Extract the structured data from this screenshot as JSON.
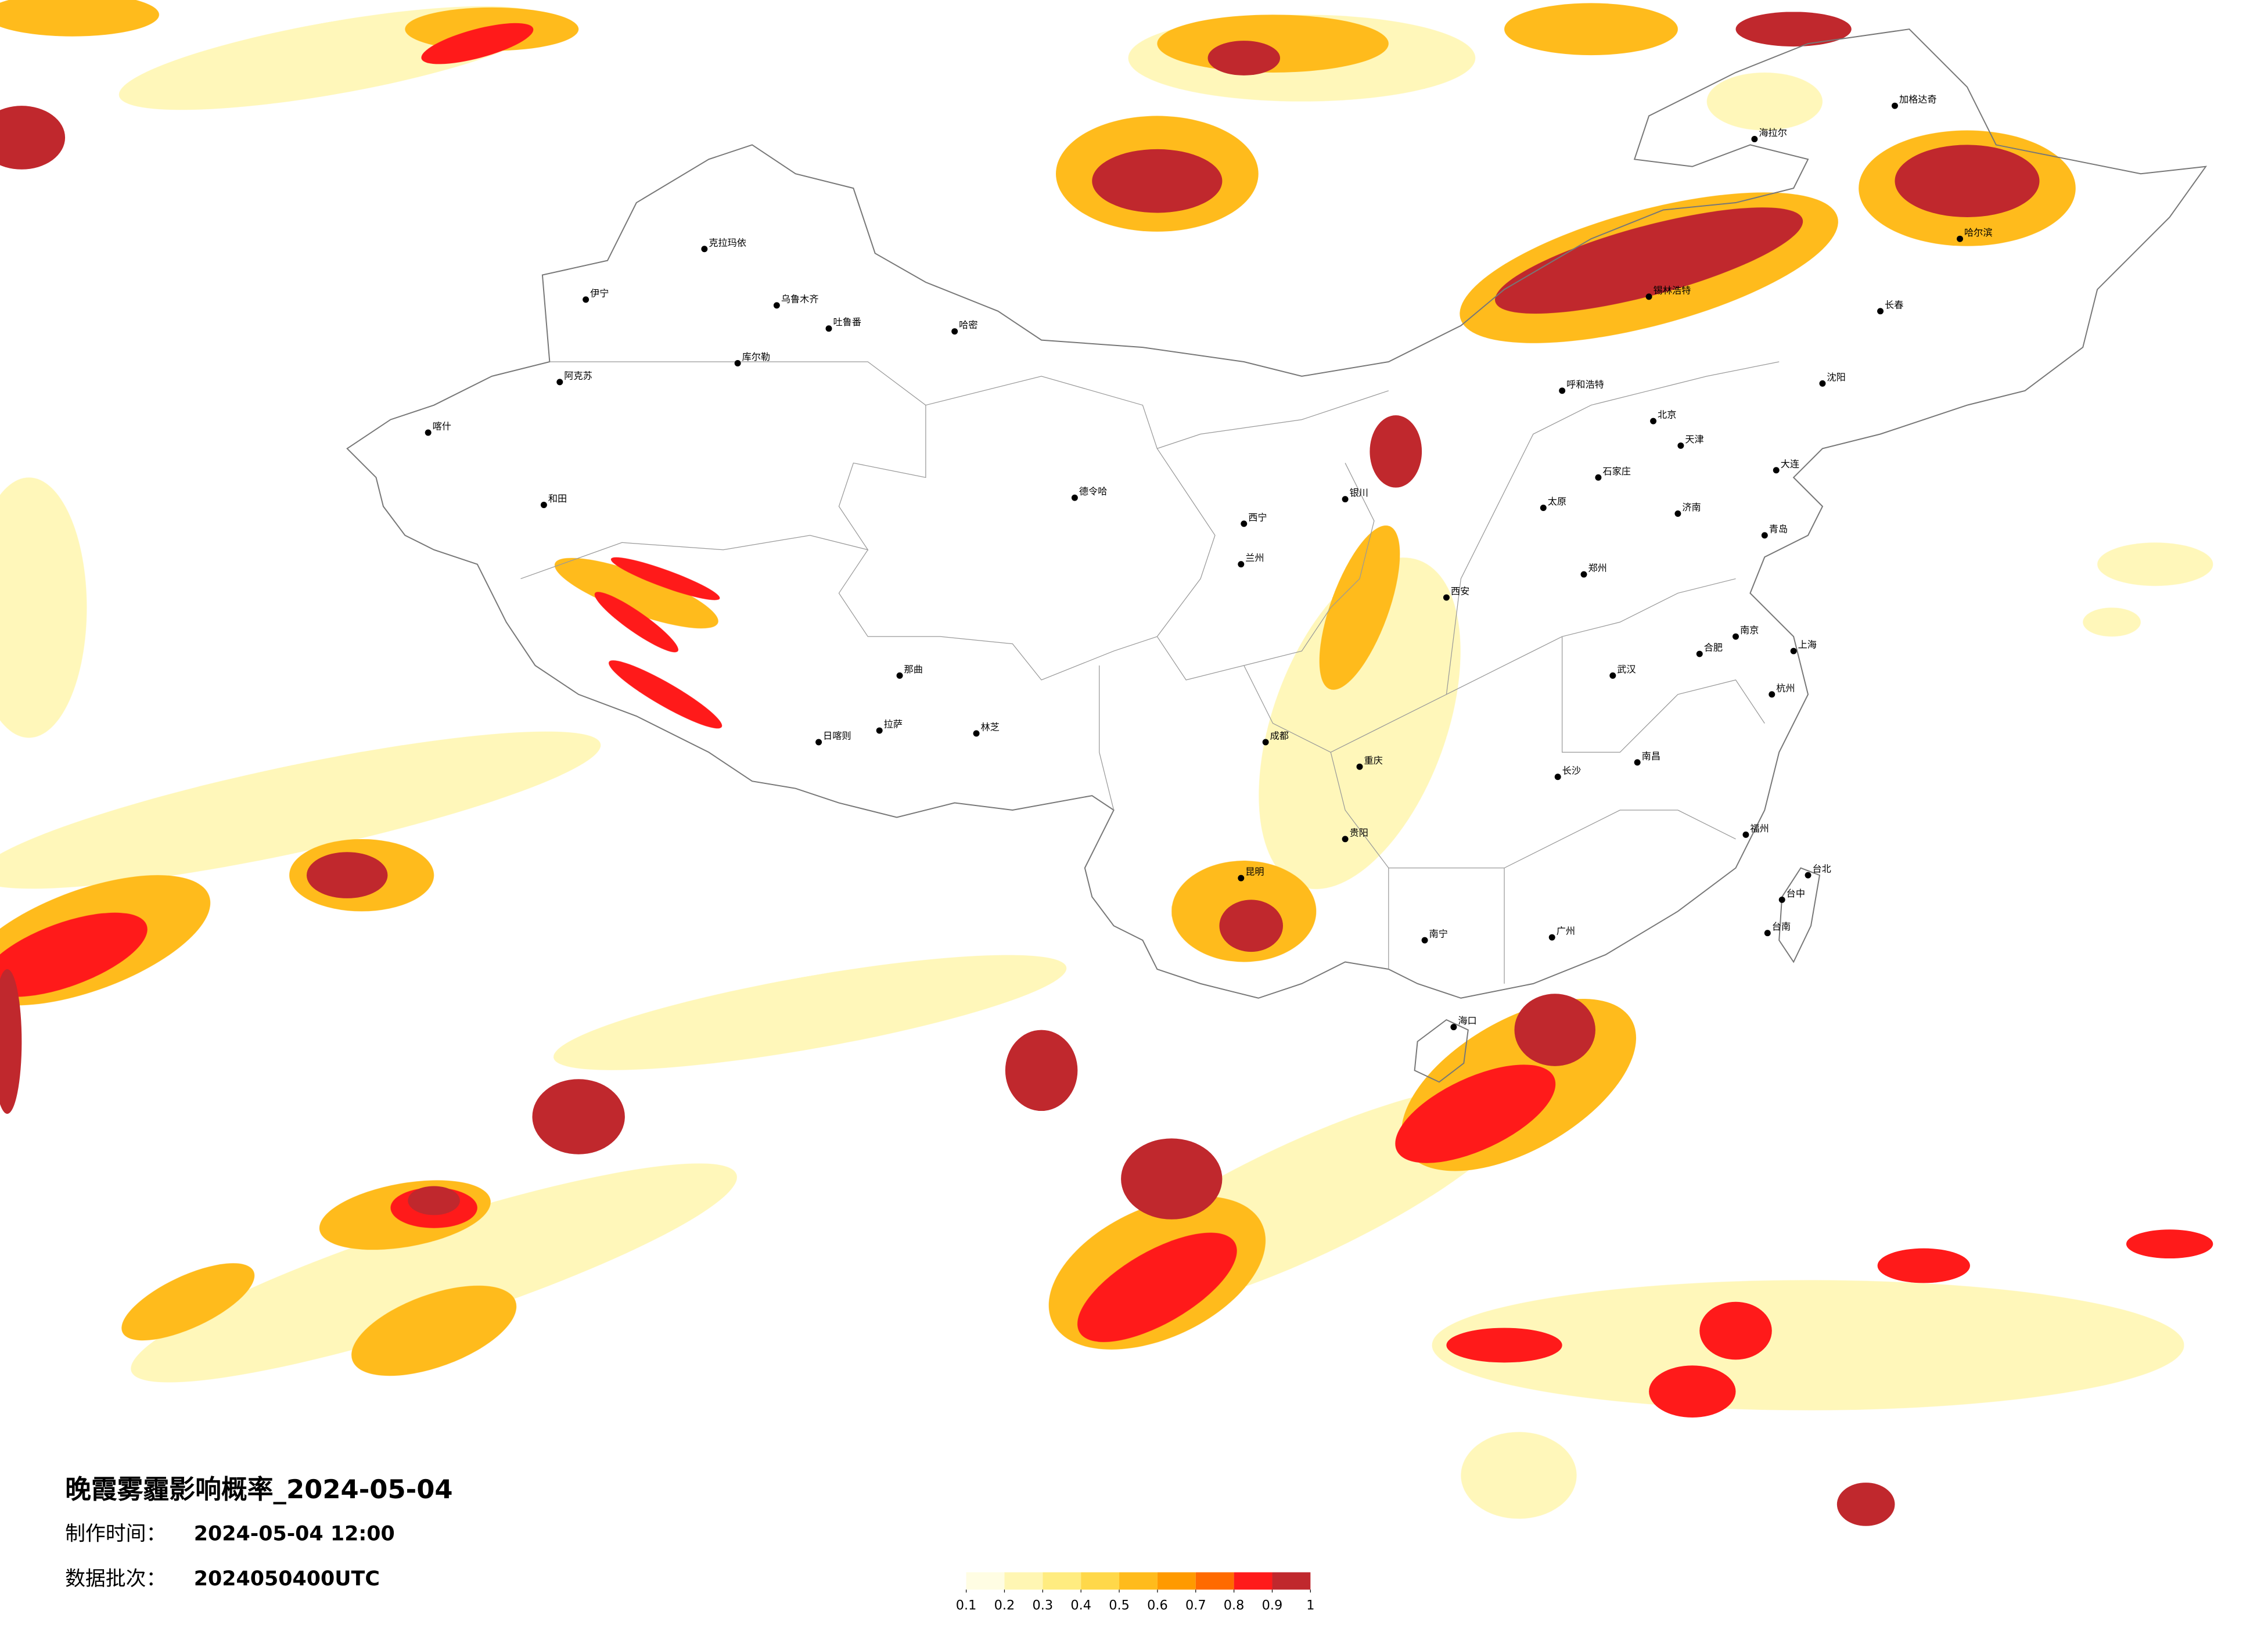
{
  "map": {
    "title": "晚霞雾霾影响概率_2024-05-04",
    "production_time_label": "制作时间：",
    "production_time": "2024-05-04 12:00",
    "batch_label": "数据批次：",
    "batch": "2024050400UTC",
    "cities": [
      "克拉玛依",
      "乌鲁木齐",
      "吐鲁番",
      "哈密",
      "伊宁",
      "库尔勒",
      "阿克苏",
      "喀什",
      "和田",
      "德令哈",
      "那曲",
      "拉萨",
      "日喀则",
      "林芝",
      "呼和浩特",
      "北京",
      "天津",
      "石家庄",
      "太原",
      "济南",
      "郑州",
      "西安",
      "成都",
      "重庆",
      "武汉",
      "长沙",
      "南昌",
      "合肥",
      "南京",
      "上海",
      "杭州",
      "福州",
      "广州",
      "南宁",
      "昆明",
      "贵阳",
      "海口",
      "台北",
      "台中",
      "台南",
      "长春",
      "哈尔滨",
      "沈阳",
      "大连",
      "青岛",
      "海拉尔",
      "加格达奇",
      "锡林浩特",
      "银川",
      "西宁",
      "兰州"
    ]
  },
  "legend": {
    "ticks": [
      0.1,
      0.2,
      0.3,
      0.4,
      0.5,
      0.6,
      0.7,
      0.8,
      0.9,
      1
    ],
    "colors": [
      "#fffde3",
      "#fff6b3",
      "#ffec80",
      "#ffd84a",
      "#ffbb1c",
      "#ff9a00",
      "#ff6a00",
      "#ff1a1a",
      "#c0282d"
    ]
  }
}
